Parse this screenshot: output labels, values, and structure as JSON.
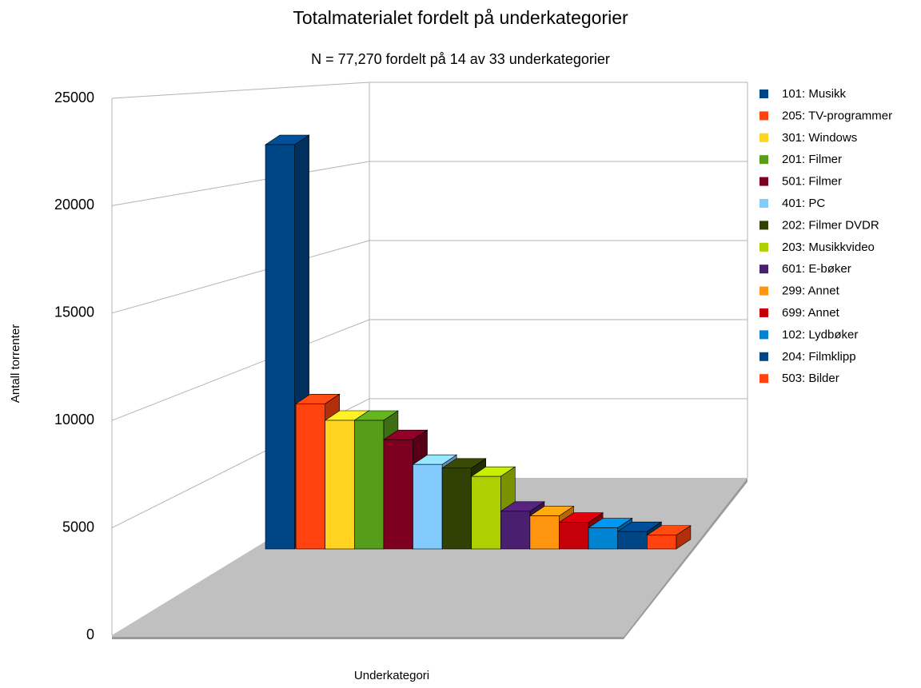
{
  "chart_data": {
    "type": "bar3d",
    "title": "Totalmaterialet fordelt på underkategorier",
    "subtitle": "N = 77,270  fordelt på 14 av 33 underkategorier",
    "y_label": "Antall torrenter",
    "x_label": "Underkategori",
    "categories": [
      "101: Musikk",
      "205: TV-programmer",
      "301: Windows",
      "201: Filmer",
      "501: Filmer",
      "401: PC",
      "202: Filmer DVDR",
      "203: Musikkvideo",
      "601: E-bøker",
      "299: Annet",
      "699: Annet",
      "102: Lydbøker",
      "204: Filmklipp",
      "503: Bilder"
    ],
    "values": [
      22000,
      7900,
      7000,
      7000,
      5950,
      4600,
      4400,
      3950,
      2050,
      1800,
      1450,
      1150,
      950,
      750
    ],
    "colors": [
      "#004586",
      "#ff420e",
      "#ffd320",
      "#579d1c",
      "#7e0021",
      "#83caff",
      "#314004",
      "#aecf00",
      "#4b1f6f",
      "#ff950e",
      "#c5000b",
      "#0084d1",
      "#004586",
      "#ff420e"
    ],
    "ylim": [
      0,
      25000
    ],
    "yticks": [
      0,
      5000,
      10000,
      15000,
      20000,
      25000
    ],
    "grid": true,
    "legend": "right"
  }
}
